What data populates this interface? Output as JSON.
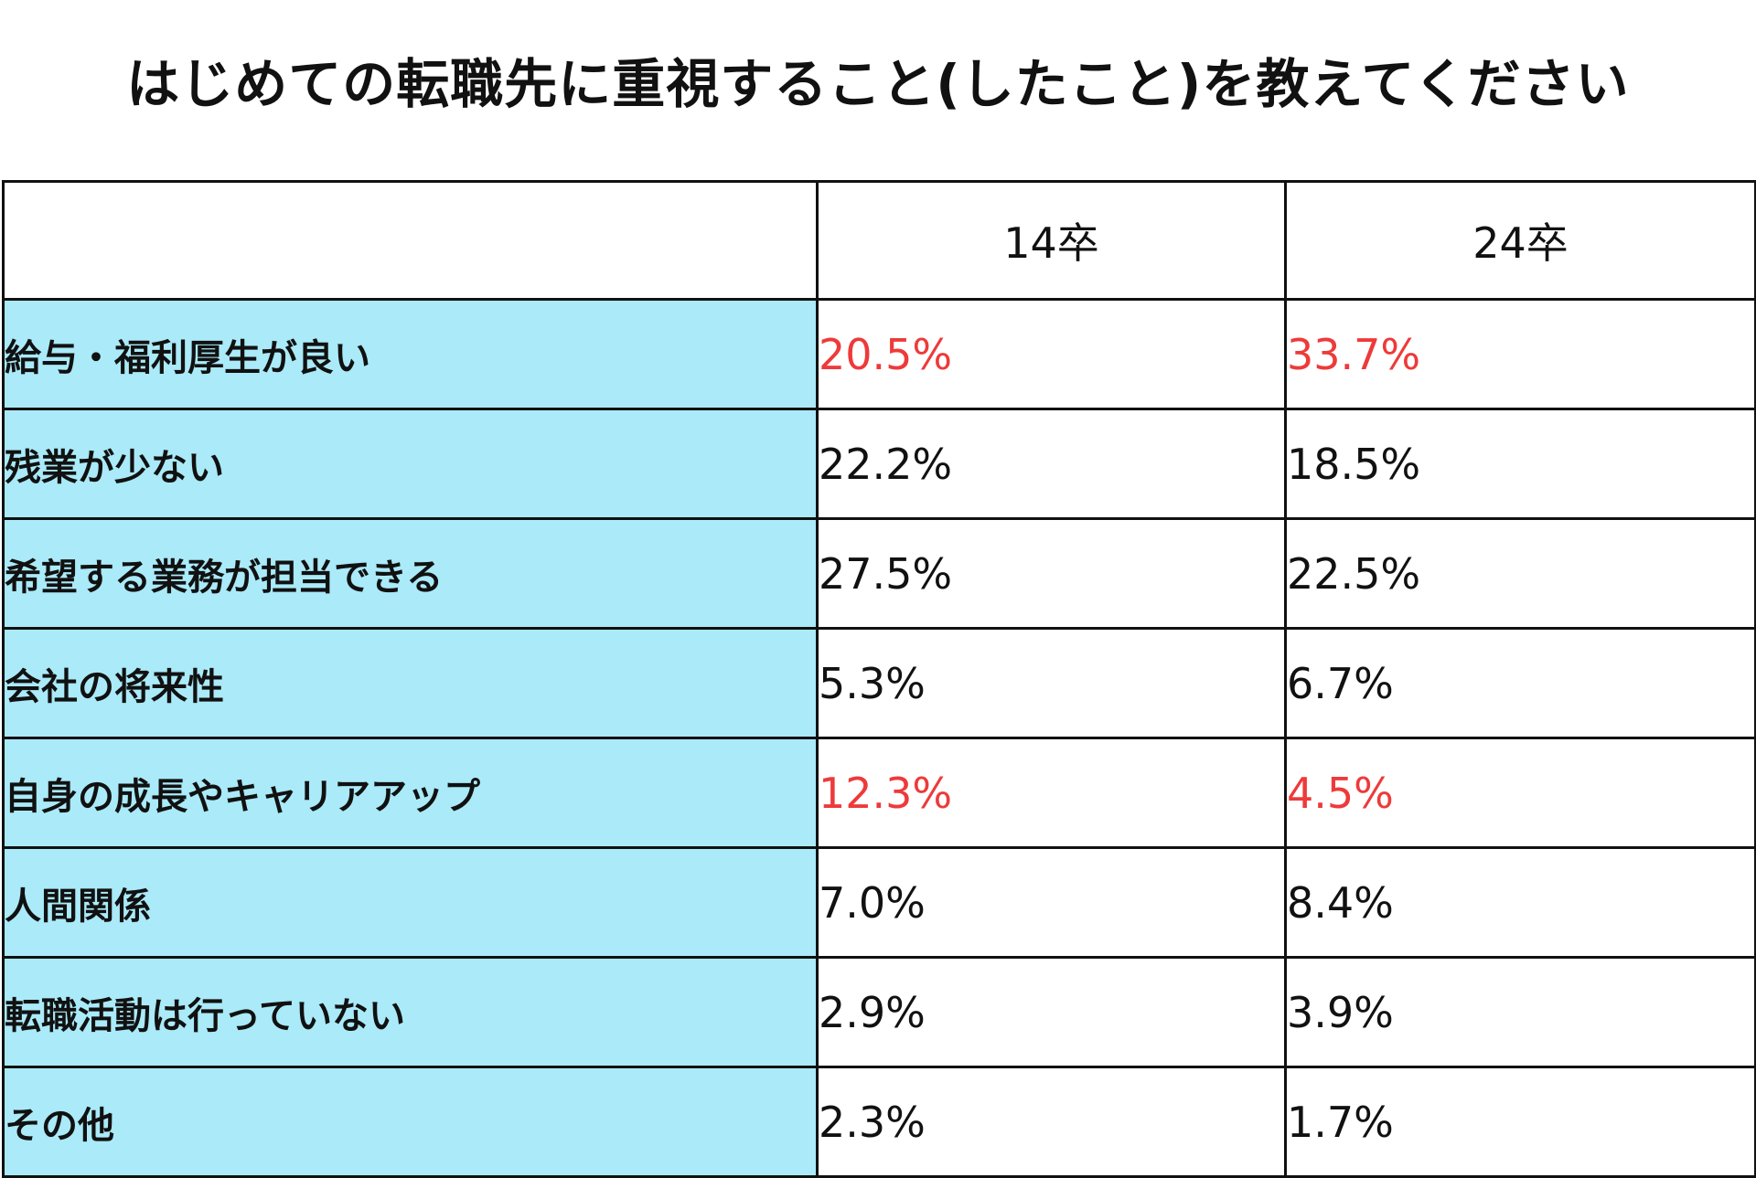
{
  "chart_data": {
    "type": "table",
    "title": "はじめての転職先に重視すること(したこと)を教えてください",
    "columns": [
      "14卒",
      "24卒"
    ],
    "rows": [
      {
        "label": "給与・福利厚生が良い",
        "values": [
          "20.5%",
          "33.7%"
        ],
        "highlight": true
      },
      {
        "label": "残業が少ない",
        "values": [
          "22.2%",
          "18.5%"
        ],
        "highlight": false
      },
      {
        "label": "希望する業務が担当できる",
        "values": [
          "27.5%",
          "22.5%"
        ],
        "highlight": false
      },
      {
        "label": "会社の将来性",
        "values": [
          "5.3%",
          "6.7%"
        ],
        "highlight": false
      },
      {
        "label": "自身の成長やキャリアアップ",
        "values": [
          "12.3%",
          "4.5%"
        ],
        "highlight": true
      },
      {
        "label": "人間関係",
        "values": [
          "7.0%",
          "8.4%"
        ],
        "highlight": false
      },
      {
        "label": "転職活動は行っていない",
        "values": [
          "2.9%",
          "3.9%"
        ],
        "highlight": false
      },
      {
        "label": "その他",
        "values": [
          "2.3%",
          "1.7%"
        ],
        "highlight": false
      }
    ]
  },
  "colors": {
    "label_background": "#aaeaf9",
    "highlight_text": "#ee3a3a",
    "border": "#111111"
  }
}
